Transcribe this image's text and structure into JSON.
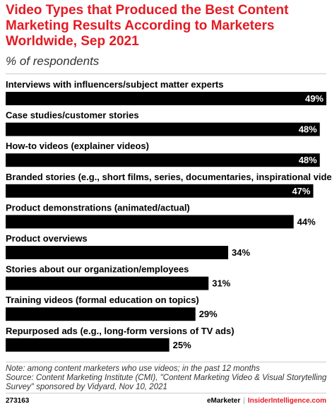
{
  "header": {
    "title": "Video Types that Produced the Best Content Marketing Results According to Marketers Worldwide, Sep 2021",
    "subtitle": "% of respondents"
  },
  "chart_data": {
    "type": "bar",
    "orientation": "horizontal",
    "categories": [
      "Interviews with influencers/subject matter experts",
      "Case studies/customer stories",
      "How-to videos (explainer videos)",
      "Branded stories (e.g., short films, series, documentaries, inspirational videos)",
      "Product demonstrations (animated/actual)",
      "Product overviews",
      "Stories about our organization/employees",
      "Training videos (formal education on topics)",
      "Repurposed ads (e.g., long-form versions of TV ads)"
    ],
    "values": [
      49,
      48,
      48,
      47,
      44,
      34,
      31,
      29,
      25
    ],
    "value_labels": [
      "49%",
      "48%",
      "48%",
      "47%",
      "44%",
      "34%",
      "31%",
      "29%",
      "25%"
    ],
    "xlim": [
      0,
      49
    ],
    "grid": false,
    "bar_color": "#000000"
  },
  "notes": {
    "note": "Note: among content marketers who use videos; in the past 12 months",
    "source_line1": "Source: Content Marketing Institute (CMI), \"Content Marketing Video & Visual Storytelling",
    "source_line2": "Survey\" sponsored by Vidyard, Nov 10, 2021"
  },
  "footer": {
    "chart_id": "273163",
    "brand_emarketer": "eMarketer",
    "separator": "|",
    "brand_insider": "InsiderIntelligence.com"
  },
  "colors": {
    "title": "#e31b23",
    "bar": "#000000",
    "label_inside": "#ffffff",
    "label_outside": "#000000"
  }
}
